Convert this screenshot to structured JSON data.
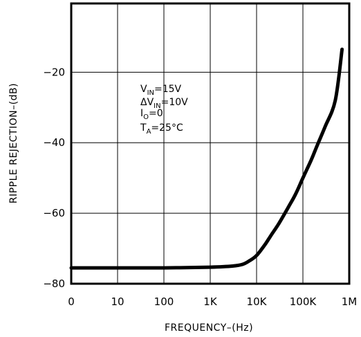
{
  "chart_data": {
    "type": "line",
    "xlabel": "FREQUENCY–(Hz)",
    "ylabel": "RIPPLE REJECTION–(dB)",
    "x_scale": "log",
    "x_ticks": [
      "0",
      "10",
      "100",
      "1K",
      "10K",
      "100K",
      "1M"
    ],
    "y_ticks": [
      "−20",
      "−40",
      "−60",
      "−80"
    ],
    "y_tick_values": [
      -20,
      -40,
      -60,
      -80
    ],
    "ylim": [
      -80,
      -20
    ],
    "xlim": [
      1,
      1000000
    ],
    "grid": true,
    "conditions": [
      {
        "main": "V",
        "sub": "IN",
        "rest": "=15V"
      },
      {
        "main": "ΔV",
        "sub": "IN",
        "rest": "=10V"
      },
      {
        "main": "I",
        "sub": "O",
        "rest": "=0"
      },
      {
        "main": "T",
        "sub": "A",
        "rest": "=25°C"
      }
    ],
    "series": [
      {
        "x": [
          1,
          10,
          100,
          1000,
          3000,
          5000,
          7000,
          10000,
          15000,
          20000,
          30000,
          50000,
          70000,
          100000,
          150000,
          200000,
          300000,
          500000,
          700000
        ],
        "y": [
          -75.5,
          -75.5,
          -75.5,
          -75.3,
          -75.0,
          -74.5,
          -73.5,
          -72.0,
          -69.0,
          -66.5,
          -63.0,
          -58.0,
          -54.5,
          -50.0,
          -45.0,
          -41.0,
          -35.5,
          -28.0,
          -13.5
        ]
      }
    ]
  }
}
